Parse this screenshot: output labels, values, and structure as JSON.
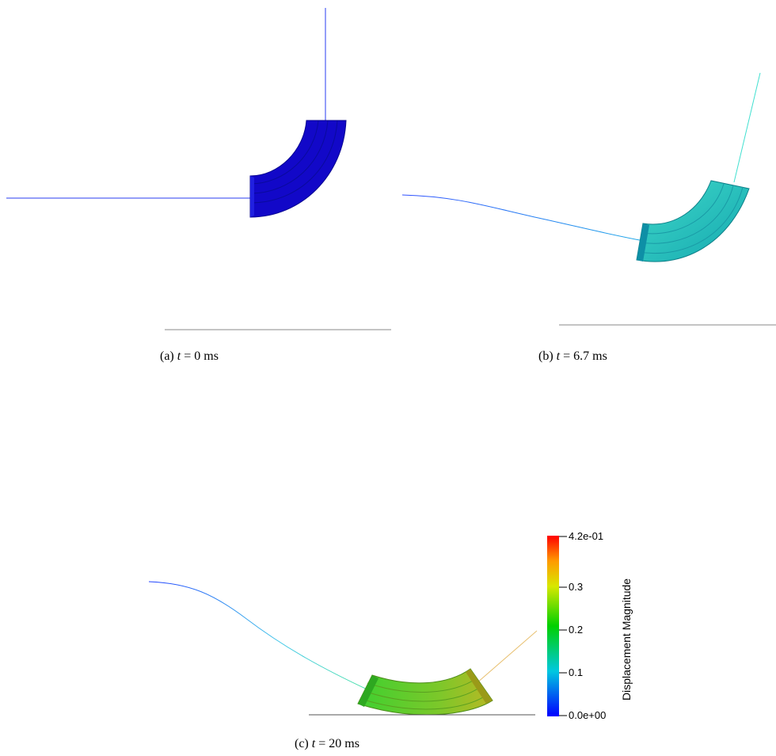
{
  "captions": {
    "a": {
      "label": "(a)",
      "t": "t",
      "rest": "= 0 ms"
    },
    "b": {
      "label": "(b)",
      "t": "t",
      "rest": "= 6.7 ms"
    },
    "c": {
      "label": "(c)",
      "t": "t",
      "rest": "= 20 ms"
    }
  },
  "colorbar": {
    "title": "Displacement Magnitude",
    "ticks": [
      "4.2e-01",
      "0.3",
      "0.2",
      "0.1",
      "0.0e+00"
    ],
    "colors": [
      "#ff0000",
      "#ff7a00",
      "#e6e600",
      "#7ee000",
      "#00d000",
      "#00c8c8",
      "#0000ff"
    ]
  }
}
